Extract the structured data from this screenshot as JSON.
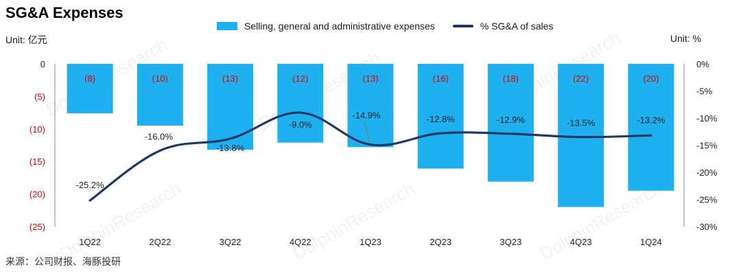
{
  "title": "SG&A Expenses",
  "unit_left": "Unit: 亿元",
  "unit_right": "Unit: %",
  "source": "来源：公司财报、海豚投研",
  "watermark": "DolphinResearch",
  "legend": {
    "bar": "Selling, general and administrative expenses",
    "line": "% SG&A of sales"
  },
  "chart_data": {
    "type": "bar+line",
    "categories": [
      "1Q22",
      "2Q22",
      "3Q22",
      "4Q22",
      "1Q23",
      "2Q23",
      "3Q23",
      "4Q23",
      "1Q24"
    ],
    "series": [
      {
        "name": "Selling, general and administrative expenses",
        "type": "bar",
        "axis": "left",
        "values": [
          -7.6,
          -9.5,
          -13.2,
          -12.1,
          -12.8,
          -16.1,
          -18.1,
          -22.0,
          -19.5
        ],
        "labels": [
          "(8)",
          "(10)",
          "(13)",
          "(12)",
          "(13)",
          "(16)",
          "(18)",
          "(22)",
          "(20)"
        ],
        "color": "#1fb0ef"
      },
      {
        "name": "% SG&A of sales",
        "type": "line",
        "axis": "right",
        "values": [
          -25.2,
          -16.0,
          -13.8,
          -9.0,
          -14.9,
          -12.8,
          -12.9,
          -13.5,
          -13.2
        ],
        "labels": [
          "-25.2%",
          "-16.0%",
          "-13.8%",
          "-9.0%",
          "-14.9%",
          "-12.8%",
          "-12.9%",
          "-13.5%",
          "-13.2%"
        ],
        "color": "#1f3864"
      }
    ],
    "y_left": {
      "ticks": [
        0,
        -5,
        -10,
        -15,
        -20,
        -25
      ],
      "tick_labels": [
        "0",
        "(5)",
        "(10)",
        "(15)",
        "(20)",
        "(25)"
      ],
      "lim": [
        -25,
        0
      ]
    },
    "y_right": {
      "ticks": [
        0,
        -5,
        -10,
        -15,
        -20,
        -25,
        -30
      ],
      "tick_labels": [
        "0%",
        "-5%",
        "-10%",
        "-15%",
        "-20%",
        "-25%",
        "-30%"
      ],
      "lim": [
        -30,
        0
      ]
    },
    "grid": false,
    "legend_position": "top"
  },
  "colors": {
    "bar": "#1fb0ef",
    "line": "#1f3864",
    "negative_label": "#e00000",
    "axis": "#888888"
  }
}
